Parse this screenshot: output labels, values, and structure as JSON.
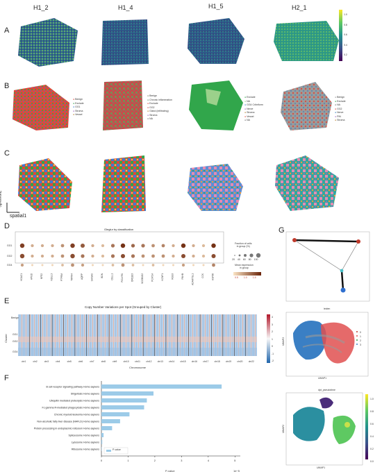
{
  "sample_headers": [
    "H1_2",
    "H1_4",
    "H1_5",
    "H2_1"
  ],
  "panel_letters": [
    "A",
    "B",
    "C",
    "D",
    "E",
    "F",
    "G"
  ],
  "colors": {
    "tissue_dark": "#3b2a6b",
    "tissue_mid": "#2a8c8c",
    "tissue_bright": "#8fd14f",
    "tumor_red": "#e0473a",
    "normal_green": "#31a64b",
    "benign_gray": "#9a9a9a",
    "dot_brown": "#7a2e0b",
    "bar_blue": "#9ccbe8"
  },
  "panelB": {
    "legends": [
      [
        "Benign",
        "Exclude",
        "GG1",
        "Stroma",
        "Vessel"
      ],
      [
        "Benign",
        "Chronic inflammation",
        "Exclude",
        "GG2",
        "Gland (infiltrating)",
        "Stroma",
        "NA"
      ],
      [
        "Exclude",
        "NA",
        "GG4 Cribriform",
        "Nerve",
        "Stroma",
        "Vessel",
        "NA"
      ],
      [
        "Benign",
        "Exclude",
        "NA",
        "GG2",
        "Nerve",
        "PIN",
        "Stroma"
      ]
    ]
  },
  "panelC": {
    "axis_x": "spatial1",
    "axis_y": "spatial2"
  },
  "panelD": {
    "title": "Gleglur by classification",
    "legend_size_title": "Fraction of cells\nin group (%)",
    "legend_size_ticks": [
      "20",
      "40",
      "60",
      "80",
      "100"
    ],
    "legend_color_title": "Mean expression\nin group",
    "legend_color_ticks": [
      "0.5",
      "1.0",
      "1.5"
    ],
    "chart_data": {
      "type": "scatter",
      "rows": [
        "GG1",
        "GG2",
        "GG4"
      ],
      "columns": [
        "HDAC1",
        "HPGD",
        "NFE2",
        "NDUL3",
        "PTPRM",
        "TRPM4",
        "AQRP",
        "SHISA9",
        "BDN",
        "CELL1",
        "PGLYRS",
        "OR11E3",
        "SCGB1D2",
        "PCAT14",
        "KCNF1",
        "RGS3",
        "PAHB",
        "ADAMTSL1",
        "CCK",
        "HSP36"
      ],
      "dot_size": [
        [
          90,
          40,
          40,
          40,
          50,
          90,
          80,
          40,
          40,
          60,
          90,
          60,
          60,
          50,
          50,
          40,
          90,
          40,
          40,
          90
        ],
        [
          90,
          40,
          40,
          40,
          50,
          90,
          60,
          40,
          40,
          60,
          80,
          60,
          50,
          50,
          50,
          40,
          80,
          40,
          40,
          80
        ],
        [
          40,
          20,
          20,
          20,
          30,
          50,
          40,
          20,
          20,
          30,
          50,
          30,
          20,
          30,
          20,
          20,
          40,
          20,
          20,
          50
        ]
      ],
      "dot_expr": [
        [
          1.4,
          0.6,
          0.6,
          0.6,
          0.8,
          1.4,
          1.2,
          0.6,
          0.5,
          1.0,
          1.5,
          1.1,
          1.0,
          0.8,
          0.9,
          0.6,
          1.5,
          0.6,
          0.5,
          1.5
        ],
        [
          1.3,
          0.6,
          0.6,
          0.6,
          0.8,
          1.3,
          1.0,
          0.6,
          0.5,
          1.0,
          1.3,
          1.0,
          0.8,
          0.8,
          0.8,
          0.6,
          1.3,
          0.6,
          0.5,
          1.3
        ],
        [
          0.7,
          0.3,
          0.3,
          0.3,
          0.5,
          0.8,
          0.7,
          0.3,
          0.3,
          0.5,
          0.8,
          0.5,
          0.3,
          0.5,
          0.3,
          0.3,
          0.7,
          0.3,
          0.3,
          0.9
        ]
      ]
    }
  },
  "panelE": {
    "title": "Copy Number Variations per Spot (Grouped by Cluster)",
    "ylabel": "Cluster",
    "xlabel": "Chromosome",
    "row_labels": [
      "Benign",
      "GG1",
      "GG2",
      "GG4"
    ],
    "chromosomes": [
      "chr1",
      "chr2",
      "chr3",
      "chr4",
      "chr5",
      "chr6",
      "chr7",
      "chr8",
      "chr9",
      "chr10",
      "chr11",
      "chr12",
      "chr13",
      "chr14",
      "chr15",
      "chr16",
      "chr17",
      "chr18",
      "chr19",
      "chr20",
      "chr22"
    ],
    "colorbar_ticks": [
      "4",
      "3",
      "2",
      "1",
      "0",
      "-1",
      "-2"
    ]
  },
  "panelF": {
    "xlabel": "P-value",
    "x_multiplier": "1e−5",
    "legend": "P-value",
    "chart_data": {
      "type": "bar",
      "orientation": "horizontal",
      "categories": [
        "B cell receptor signaling pathway Homo sapiens",
        "Shigellosis Homo sapiens",
        "Ubiquitin mediated proteolysis Homo sapiens",
        "Fc gamma R-mediated phagocytosis Homo sapiens",
        "Chronic myeloid leukemia Homo sapiens",
        "Non-alcoholic fatty liver disease (NAFLD) Homo sapiens",
        "Protein processing in endoplasmic reticulum Homo sapiens",
        "Spliceosome Homo sapiens",
        "Lysosome Homo sapiens",
        "Ribosome Homo sapiens"
      ],
      "values": [
        4.5,
        1.95,
        1.7,
        1.6,
        1.05,
        0.7,
        0.4,
        0.08,
        0.03,
        0.01
      ],
      "xticks": [
        "0",
        "1",
        "2",
        "3",
        "4",
        "5"
      ],
      "xlim": [
        0,
        5.2
      ]
    }
  },
  "panelG": {
    "leiden_title": "leiden",
    "pseudotime_title": "dpt_pseudotime",
    "umap_x": "UMAP1",
    "umap_y": "UMAP2",
    "leiden_legend": [
      "0",
      "1",
      "2",
      "3"
    ],
    "pseudotime_ticks": [
      "1.0",
      "0.8",
      "0.6",
      "0.4",
      "0.2",
      "0.0"
    ]
  },
  "panelA_colorbar_ticks": [
    "1.0",
    "0.8",
    "0.6",
    "0.4",
    "0.2"
  ]
}
